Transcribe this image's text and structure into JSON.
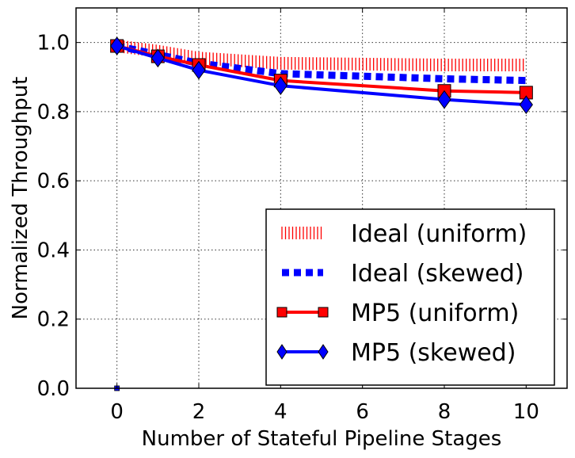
{
  "chart_data": {
    "type": "line",
    "title": "",
    "xlabel": "Number of Stateful Pipeline Stages",
    "ylabel": "Normalized Throughput",
    "xlim": [
      -1,
      11
    ],
    "ylim": [
      0.0,
      1.1
    ],
    "x_ticks": [
      "0",
      "2",
      "4",
      "6",
      "8",
      "10"
    ],
    "y_ticks": [
      "0.0",
      "0.2",
      "0.4",
      "0.6",
      "0.8",
      "1.0"
    ],
    "grid": true,
    "legend_position": "lower-right",
    "series": [
      {
        "name": "Ideal (uniform)",
        "style": "hatched",
        "color": "#ff0000",
        "x": [
          0,
          1,
          2,
          4,
          8,
          10
        ],
        "y": [
          0.99,
          0.975,
          0.955,
          0.94,
          0.935,
          0.935
        ]
      },
      {
        "name": "Ideal (skewed)",
        "style": "dotted",
        "color": "#0000ff",
        "x": [
          0,
          1,
          2,
          4,
          8,
          10
        ],
        "y": [
          0.99,
          0.965,
          0.94,
          0.91,
          0.895,
          0.89
        ]
      },
      {
        "name": "MP5 (uniform)",
        "style": "solid-square",
        "color": "#ff0000",
        "x": [
          0,
          1,
          2,
          4,
          8,
          10
        ],
        "y": [
          0.99,
          0.96,
          0.935,
          0.89,
          0.86,
          0.855
        ]
      },
      {
        "name": "MP5 (skewed)",
        "style": "solid-diamond",
        "color": "#0000ff",
        "x": [
          0,
          1,
          2,
          4,
          8,
          10
        ],
        "y": [
          0.99,
          0.955,
          0.92,
          0.875,
          0.835,
          0.82
        ]
      }
    ]
  }
}
